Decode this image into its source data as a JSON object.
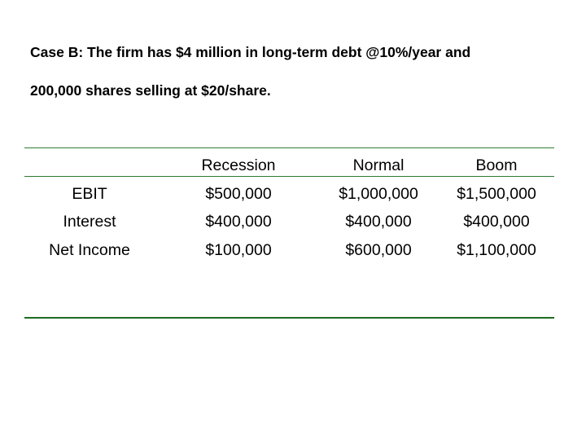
{
  "heading": {
    "line1": "Case B: The firm has $4 million in long-term debt @10%/year and",
    "line2": "200,000 shares selling at $20/share."
  },
  "table": {
    "columns": [
      "",
      "Recession",
      "Normal",
      "Boom"
    ],
    "rows": [
      {
        "label": "EBIT",
        "values": [
          "$500,000",
          "$1,000,000",
          "$1,500,000"
        ]
      },
      {
        "label": "Interest",
        "values": [
          "$400,000",
          "$400,000",
          "$400,000"
        ]
      },
      {
        "label": "Net Income",
        "values": [
          "$100,000",
          "$600,000",
          "$1,100,000"
        ]
      }
    ]
  },
  "colors": {
    "rule": "#2e7d32",
    "text": "#000000",
    "background": "#ffffff"
  }
}
